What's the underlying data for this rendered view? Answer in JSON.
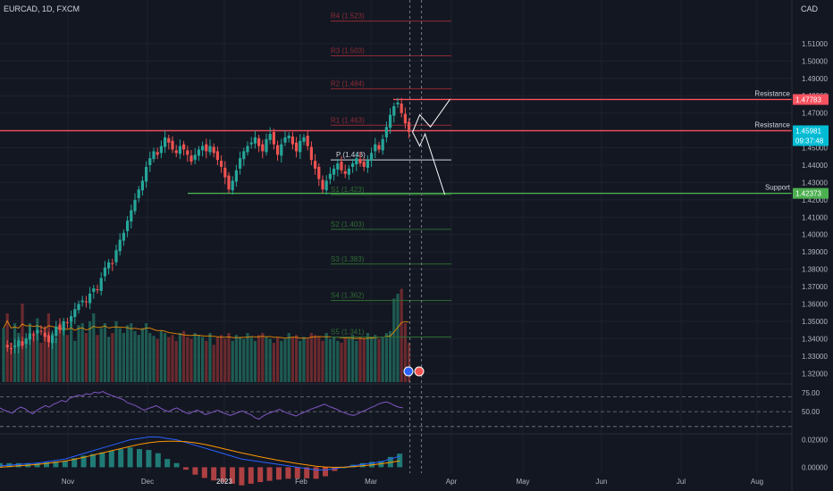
{
  "header": {
    "symbol": "EURCAD, 1D, FXCM",
    "axis_currency": "CAD"
  },
  "colors": {
    "background": "#131722",
    "grid": "#1e222d",
    "up": "#26a69a",
    "down": "#ef5350",
    "volume_up": "#1e5b52",
    "volume_down": "#6a2a2e",
    "resistance": "#f7525f",
    "support": "#4caf50",
    "pivot": "#d1d4dc",
    "pivot_r": "#8e2b35",
    "pivot_s": "#2e6b33",
    "rsi": "#7e57c2",
    "ma": "#ff9800",
    "macd": "#2962ff",
    "signal": "#ff9800",
    "axis_text": "#b2b5be"
  },
  "chart_data": [
    {
      "type": "candlestick",
      "title": "",
      "price_range": [
        1.315,
        1.53
      ],
      "y_ticks": [
        "1.51000",
        "1.50000",
        "1.49000",
        "1.48000",
        "1.47000",
        "1.46000",
        "1.45000",
        "1.44000",
        "1.43000",
        "1.42000",
        "1.41000",
        "1.40000",
        "1.39000",
        "1.38000",
        "1.37000",
        "1.36000",
        "1.35000",
        "1.34000",
        "1.33000",
        "1.32000"
      ],
      "x_labels": [
        "Nov",
        "Dec",
        "2023",
        "Feb",
        "Mar",
        "Apr",
        "May",
        "Jun",
        "Jul",
        "Aug"
      ],
      "trend": [
        1.337,
        1.335,
        1.334,
        1.336,
        1.339,
        1.336,
        1.34,
        1.343,
        1.342,
        1.345,
        1.344,
        1.341,
        1.338,
        1.342,
        1.347,
        1.345,
        1.35,
        1.349,
        1.353,
        1.357,
        1.36,
        1.362,
        1.361,
        1.366,
        1.369,
        1.368,
        1.375,
        1.381,
        1.384,
        1.383,
        1.391,
        1.397,
        1.401,
        1.408,
        1.414,
        1.42,
        1.426,
        1.431,
        1.439,
        1.444,
        1.448,
        1.446,
        1.451,
        1.456,
        1.453,
        1.449,
        1.447,
        1.451,
        1.449,
        1.446,
        1.442,
        1.446,
        1.449,
        1.451,
        1.448,
        1.451,
        1.447,
        1.443,
        1.439,
        1.433,
        1.426,
        1.431,
        1.437,
        1.444,
        1.448,
        1.451,
        1.453,
        1.456,
        1.451,
        1.448,
        1.455,
        1.458,
        1.452,
        1.446,
        1.452,
        1.456,
        1.457,
        1.452,
        1.448,
        1.454,
        1.456,
        1.451,
        1.443,
        1.438,
        1.432,
        1.426,
        1.431,
        1.435,
        1.438,
        1.441,
        1.437,
        1.435,
        1.438,
        1.441,
        1.444,
        1.441,
        1.439,
        1.443,
        1.447,
        1.452,
        1.449,
        1.455,
        1.462,
        1.469,
        1.474,
        1.476,
        1.47,
        1.464,
        1.459
      ],
      "volumes": [
        0.55,
        0.7,
        0.4,
        0.6,
        0.5,
        0.8,
        0.45,
        0.6,
        0.5,
        0.65,
        0.4,
        0.55,
        0.7,
        0.5,
        0.45,
        0.6,
        0.52,
        0.48,
        0.66,
        0.42,
        0.58,
        0.6,
        0.5,
        0.62,
        0.7,
        0.48,
        0.55,
        0.6,
        0.46,
        0.5,
        0.62,
        0.55,
        0.5,
        0.58,
        0.6,
        0.52,
        0.48,
        0.55,
        0.6,
        0.5,
        0.47,
        0.44,
        0.52,
        0.5,
        0.46,
        0.48,
        0.42,
        0.5,
        0.52,
        0.46,
        0.44,
        0.5,
        0.48,
        0.46,
        0.42,
        0.5,
        0.38,
        0.46,
        0.48,
        0.44,
        0.5,
        0.42,
        0.48,
        0.46,
        0.44,
        0.5,
        0.46,
        0.42,
        0.48,
        0.5,
        0.46,
        0.44,
        0.4,
        0.46,
        0.42,
        0.44,
        0.5,
        0.46,
        0.48,
        0.42,
        0.46,
        0.44,
        0.5,
        0.48,
        0.46,
        0.42,
        0.5,
        0.44,
        0.46,
        0.42,
        0.4,
        0.46,
        0.44,
        0.48,
        0.42,
        0.46,
        0.44,
        0.5,
        0.46,
        0.48,
        0.44,
        0.46,
        0.5,
        0.52,
        0.85,
        0.9,
        0.95,
        0.6,
        0.4
      ],
      "levels": {
        "pivots": [
          {
            "label": "R4 (1.523)",
            "value": 1.523
          },
          {
            "label": "R3 (1.503)",
            "value": 1.503
          },
          {
            "label": "R2 (1.484)",
            "value": 1.484
          },
          {
            "label": "R1 (1.463)",
            "value": 1.463
          },
          {
            "label": "P (1.443)",
            "value": 1.443
          },
          {
            "label": "S1 (1.423)",
            "value": 1.423
          },
          {
            "label": "S2 (1.403)",
            "value": 1.403
          },
          {
            "label": "S3 (1.383)",
            "value": 1.383
          },
          {
            "label": "S4 (1.362)",
            "value": 1.362
          },
          {
            "label": "S5 (1.341)",
            "value": 1.341
          }
        ],
        "resistance_1": {
          "label": "Resistance",
          "value": 1.47783,
          "price_tag": "1.47783"
        },
        "resistance_2": {
          "label": "Resistance",
          "value": 1.45981,
          "price_tag": "1.45981",
          "countdown": "09:37:48"
        },
        "support": {
          "label": "Support",
          "value": 1.42373,
          "price_tag": "1.42373"
        }
      },
      "projection": [
        [
          1.459,
          1.469
        ],
        [
          1.463,
          1.462
        ],
        [
          1.478,
          1.478
        ]
      ],
      "projection_down": [
        [
          1.459,
          1.469
        ],
        [
          1.451,
          1.458
        ],
        [
          1.423,
          1.423
        ]
      ]
    },
    {
      "type": "line",
      "name": "",
      "y_ticks": [
        "75.00",
        "50.00"
      ],
      "levels": [
        70,
        50,
        30
      ],
      "values": [
        55,
        52,
        50,
        48,
        53,
        56,
        54,
        50,
        47,
        52,
        55,
        58,
        56,
        60,
        62,
        65,
        63,
        68,
        70,
        72,
        71,
        74,
        73,
        76,
        75,
        77,
        74,
        72,
        70,
        68,
        66,
        62,
        60,
        58,
        55,
        52,
        54,
        56,
        58,
        55,
        52,
        50,
        53,
        55,
        52,
        49,
        47,
        50,
        52,
        49,
        46,
        48,
        50,
        52,
        49,
        47,
        45,
        47,
        49,
        51,
        48,
        46,
        42,
        40,
        44,
        47,
        49,
        51,
        53,
        50,
        48,
        46,
        44,
        47,
        49,
        52,
        54,
        56,
        58,
        60,
        57,
        55,
        53,
        50,
        48,
        46,
        45,
        47,
        50,
        52,
        55,
        57,
        60,
        62,
        63,
        61,
        58,
        56,
        55
      ]
    },
    {
      "type": "line",
      "name": "",
      "y_ticks": [
        "0.02000",
        "0.00000"
      ],
      "macd": [
        0.001,
        0.0015,
        0.002,
        0.0025,
        0.003,
        0.004,
        0.005,
        0.006,
        0.008,
        0.01,
        0.012,
        0.014,
        0.016,
        0.018,
        0.02,
        0.021,
        0.022,
        0.022,
        0.021,
        0.02,
        0.018,
        0.016,
        0.014,
        0.012,
        0.01,
        0.008,
        0.006,
        0.005,
        0.004,
        0.003,
        0.002,
        0.001,
        0.0,
        -0.001,
        -0.002,
        -0.002,
        -0.001,
        0.0,
        0.001,
        0.002,
        0.003,
        0.004,
        0.006,
        0.008
      ],
      "signal": [
        0.0,
        0.0005,
        0.001,
        0.0015,
        0.002,
        0.0028,
        0.0036,
        0.0045,
        0.0058,
        0.0072,
        0.0088,
        0.0104,
        0.012,
        0.0136,
        0.0152,
        0.0166,
        0.0178,
        0.0186,
        0.019,
        0.019,
        0.0186,
        0.0178,
        0.0166,
        0.0152,
        0.0136,
        0.012,
        0.0104,
        0.009,
        0.0076,
        0.0063,
        0.005,
        0.0038,
        0.0027,
        0.0017,
        0.0008,
        0.0002,
        -0.0001,
        0.0,
        0.0004,
        0.001,
        0.0017,
        0.0025,
        0.0035,
        0.0047
      ]
    }
  ]
}
